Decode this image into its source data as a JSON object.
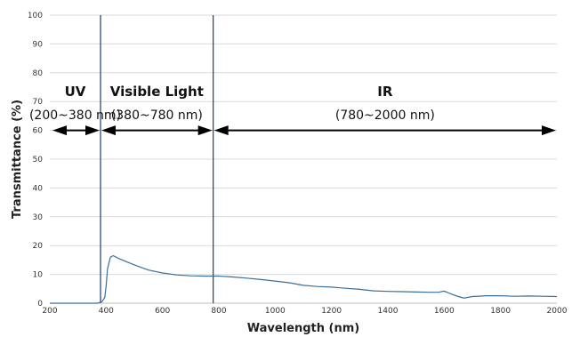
{
  "chart_data": {
    "type": "line",
    "xlabel": "Wavelength (nm)",
    "ylabel": "Transmittance (%)",
    "xlim": [
      200,
      2000
    ],
    "ylim": [
      0,
      100
    ],
    "x_ticks": [
      200,
      400,
      600,
      800,
      1000,
      1200,
      1400,
      1600,
      1800,
      2000
    ],
    "y_ticks": [
      0,
      10,
      20,
      30,
      40,
      50,
      60,
      70,
      80,
      90,
      100
    ],
    "grid": "horizontal",
    "colors": {
      "line": "#3c6e9c",
      "boundary": "#1f3d66",
      "arrow": "#000000",
      "grid": "#d9d9d9"
    },
    "region_boundaries": [
      380,
      780
    ],
    "regions": [
      {
        "name": "UV",
        "range": "(200~380 nm)",
        "from": 200,
        "to": 380
      },
      {
        "name": "Visible Light",
        "range": "(380~780 nm)",
        "from": 380,
        "to": 780
      },
      {
        "name": "IR",
        "range": "(780~2000 nm)",
        "from": 780,
        "to": 2000
      }
    ],
    "arrow_level": 60,
    "series": [
      {
        "x": [
          200,
          300,
          370,
          385,
          395,
          400,
          405,
          415,
          425,
          445,
          475,
          500,
          550,
          600,
          650,
          700,
          750,
          800,
          850,
          900,
          950,
          1000,
          1050,
          1100,
          1150,
          1200,
          1250,
          1300,
          1350,
          1400,
          1450,
          1500,
          1550,
          1580,
          1600,
          1620,
          1650,
          1670,
          1700,
          1750,
          1800,
          1850,
          1900,
          1950,
          2000
        ],
        "y": [
          0,
          0,
          0,
          0.5,
          2,
          6,
          12,
          16,
          16.5,
          15.5,
          14.3,
          13.3,
          11.5,
          10.5,
          9.8,
          9.5,
          9.4,
          9.4,
          9.1,
          8.7,
          8.2,
          7.7,
          7.1,
          6.2,
          5.8,
          5.6,
          5.2,
          4.8,
          4.3,
          4.1,
          4.0,
          3.9,
          3.8,
          3.8,
          4.2,
          3.4,
          2.3,
          1.8,
          2.3,
          2.6,
          2.6,
          2.4,
          2.5,
          2.4,
          2.3
        ]
      }
    ]
  }
}
